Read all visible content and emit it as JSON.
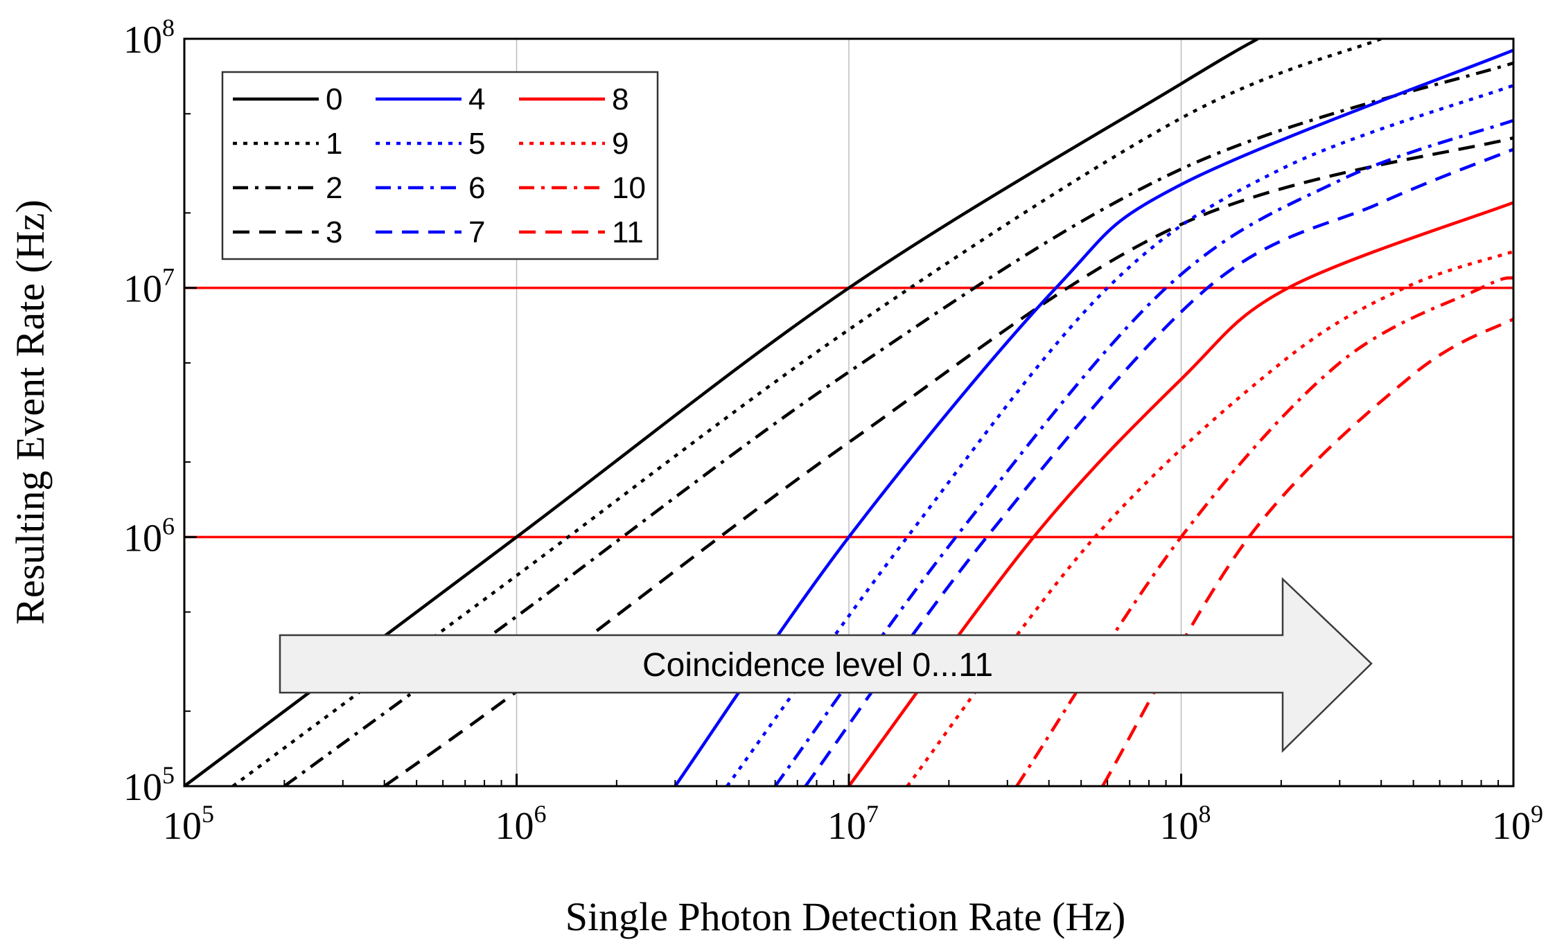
{
  "chart_data": {
    "type": "line",
    "title": "",
    "xlabel": "Single Photon Detection Rate (Hz)",
    "ylabel": "Resulting Event Rate (Hz)",
    "xscale": "log",
    "yscale": "log",
    "xlim": [
      100000,
      1000000000
    ],
    "ylim": [
      100000,
      100000000
    ],
    "x_ticks": [
      {
        "value": 100000,
        "base": "10",
        "exp": "5"
      },
      {
        "value": 1000000,
        "base": "10",
        "exp": "6"
      },
      {
        "value": 10000000,
        "base": "10",
        "exp": "7"
      },
      {
        "value": 100000000,
        "base": "10",
        "exp": "8"
      },
      {
        "value": 1000000000,
        "base": "10",
        "exp": "9"
      }
    ],
    "y_ticks": [
      {
        "value": 100000,
        "base": "10",
        "exp": "5"
      },
      {
        "value": 1000000,
        "base": "10",
        "exp": "6"
      },
      {
        "value": 10000000,
        "base": "10",
        "exp": "7"
      },
      {
        "value": 100000000,
        "base": "10",
        "exp": "8"
      }
    ],
    "grid": "vertical at decades",
    "legend_position": "top-left",
    "reference_lines": [
      {
        "y": 10000000,
        "color": "#ff0000"
      },
      {
        "y": 1000000,
        "color": "#ff0000"
      }
    ],
    "annotation": {
      "text": "Coincidence level 0...11",
      "type": "arrow",
      "direction": "right"
    },
    "series": [
      {
        "name": "0",
        "color": "#000000",
        "style": "solid",
        "points": [
          [
            100000,
            100000
          ],
          [
            1000000,
            1000000
          ],
          [
            10000000,
            10000000
          ],
          [
            100000000,
            66000000
          ],
          [
            170000000,
            100000000
          ]
        ]
      },
      {
        "name": "1",
        "color": "#000000",
        "style": "dotted",
        "points": [
          [
            140000,
            100000
          ],
          [
            1000000,
            700000
          ],
          [
            10000000,
            6800000
          ],
          [
            100000000,
            48000000
          ],
          [
            400000000,
            100000000
          ]
        ]
      },
      {
        "name": "2",
        "color": "#000000",
        "style": "dashdot",
        "points": [
          [
            200000,
            100000
          ],
          [
            1000000,
            480000
          ],
          [
            10000000,
            4600000
          ],
          [
            100000000,
            30000000
          ],
          [
            1000000000,
            80000000
          ]
        ]
      },
      {
        "name": "3",
        "color": "#000000",
        "style": "dashed",
        "points": [
          [
            400000,
            100000
          ],
          [
            1000000,
            240000
          ],
          [
            10000000,
            2400000
          ],
          [
            100000000,
            18000000
          ],
          [
            1000000000,
            40000000
          ]
        ]
      },
      {
        "name": "4",
        "color": "#0000ff",
        "style": "solid",
        "points": [
          [
            3000000,
            100000
          ],
          [
            10000000,
            1000000
          ],
          [
            42000000,
            10000000
          ],
          [
            100000000,
            26000000
          ],
          [
            1000000000,
            90000000
          ]
        ]
      },
      {
        "name": "5",
        "color": "#0000ff",
        "style": "dotted",
        "points": [
          [
            4300000,
            100000
          ],
          [
            15000000,
            1000000
          ],
          [
            60000000,
            10000000
          ],
          [
            200000000,
            30000000
          ],
          [
            1000000000,
            65000000
          ]
        ]
      },
      {
        "name": "6",
        "color": "#0000ff",
        "style": "dashdot",
        "points": [
          [
            6000000,
            100000
          ],
          [
            21000000,
            1000000
          ],
          [
            90000000,
            10000000
          ],
          [
            300000000,
            27000000
          ],
          [
            1000000000,
            47000000
          ]
        ]
      },
      {
        "name": "7",
        "color": "#0000ff",
        "style": "dashed",
        "points": [
          [
            7400000,
            100000
          ],
          [
            26000000,
            1000000
          ],
          [
            120000000,
            10000000
          ],
          [
            400000000,
            22000000
          ],
          [
            1000000000,
            36000000
          ]
        ]
      },
      {
        "name": "8",
        "color": "#ff0000",
        "style": "solid",
        "points": [
          [
            10000000,
            100000
          ],
          [
            36000000,
            1000000
          ],
          [
            100000000,
            4300000
          ],
          [
            210000000,
            10000000
          ],
          [
            1000000000,
            22000000
          ]
        ]
      },
      {
        "name": "9",
        "color": "#ff0000",
        "style": "dotted",
        "points": [
          [
            15000000,
            100000
          ],
          [
            55000000,
            1000000
          ],
          [
            200000000,
            5000000
          ],
          [
            470000000,
            10000000
          ],
          [
            1000000000,
            14000000
          ]
        ]
      },
      {
        "name": "10",
        "color": "#ff0000",
        "style": "dashdot",
        "points": [
          [
            32000000,
            100000
          ],
          [
            100000000,
            1000000
          ],
          [
            300000000,
            5000000
          ],
          [
            800000000,
            10000000
          ],
          [
            1000000000,
            11000000
          ]
        ]
      },
      {
        "name": "11",
        "color": "#ff0000",
        "style": "dashed",
        "points": [
          [
            58000000,
            100000
          ],
          [
            160000000,
            1000000
          ],
          [
            500000000,
            4500000
          ],
          [
            1000000000,
            7500000
          ]
        ]
      }
    ]
  }
}
